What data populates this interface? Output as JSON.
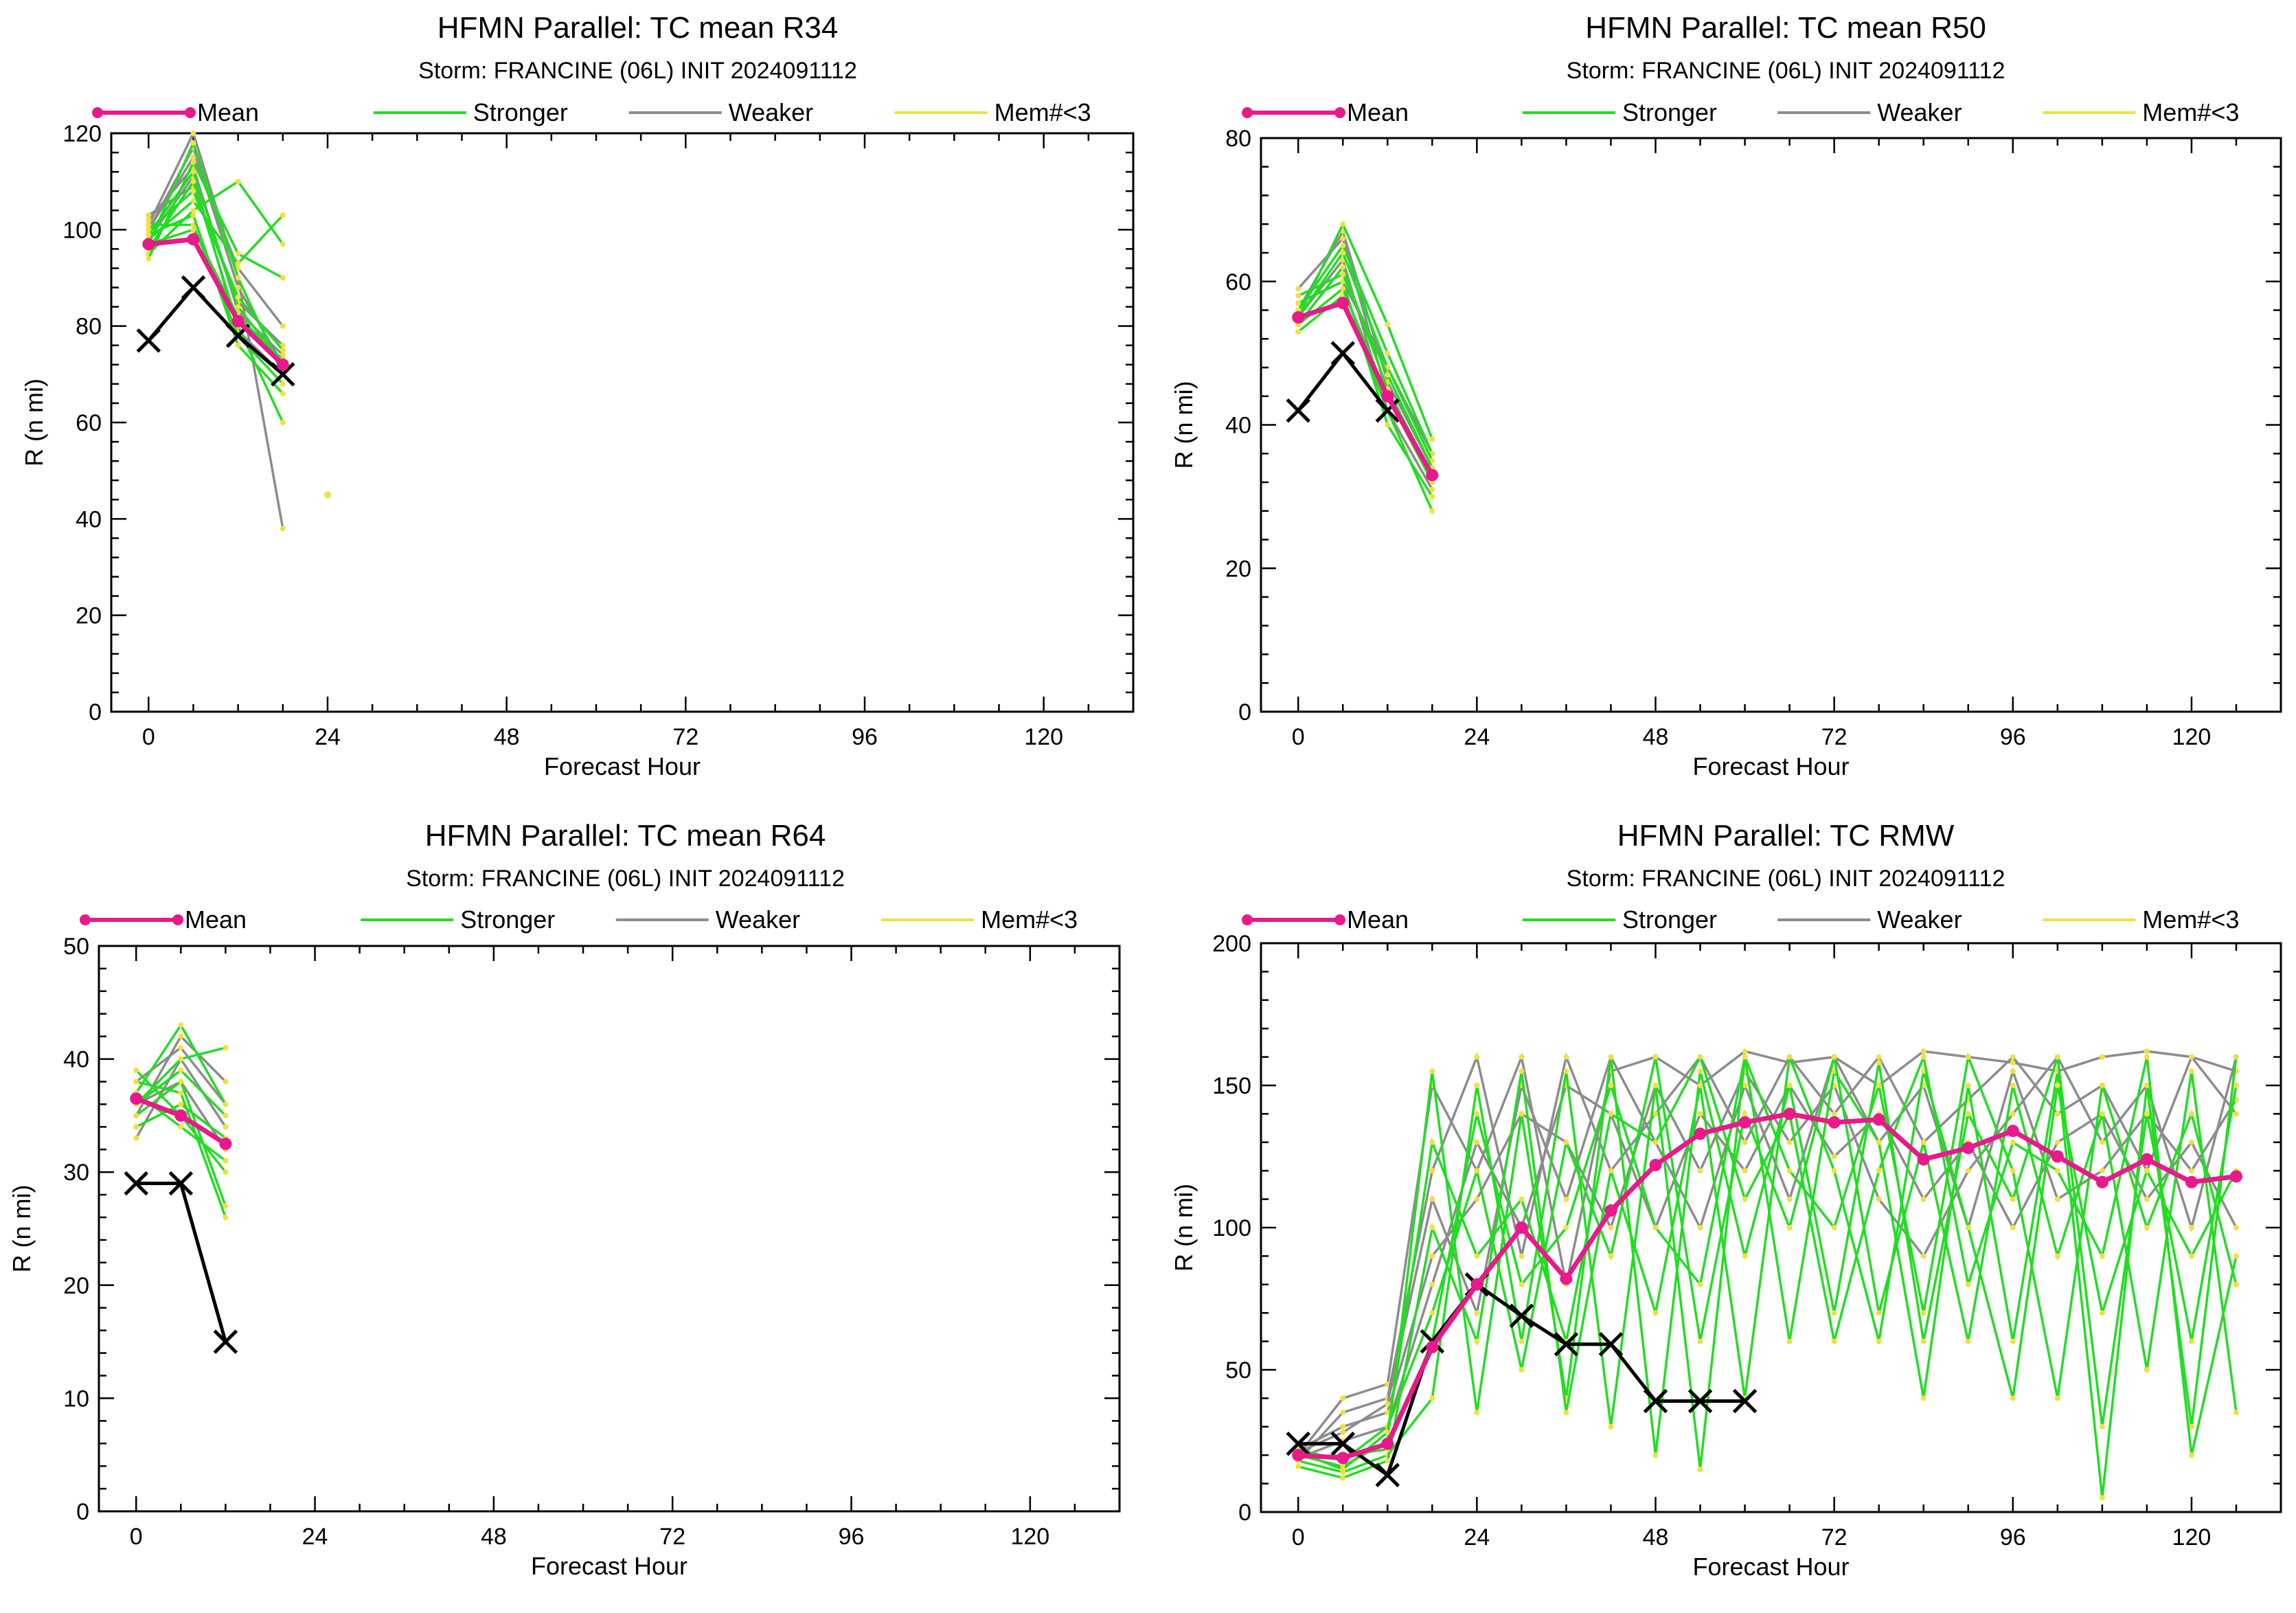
{
  "figure": {
    "panels": [
      {
        "title": "HFMN Parallel: TC mean R34",
        "subtitle": "Storm: FRANCINE (06L) INIT 2024091112",
        "legend": [
          "Mean",
          "Stronger",
          "Weaker",
          "Mem#<3"
        ],
        "xlabel": "Forecast Hour",
        "ylabel": "R (n mi)",
        "xticks": [
          "0",
          "24",
          "48",
          "72",
          "96",
          "120"
        ],
        "yticks": [
          "0",
          "20",
          "40",
          "60",
          "80",
          "100",
          "120"
        ]
      },
      {
        "title": "HFMN Parallel: TC mean R50",
        "subtitle": "Storm: FRANCINE (06L) INIT 2024091112",
        "legend": [
          "Mean",
          "Stronger",
          "Weaker",
          "Mem#<3"
        ],
        "xlabel": "Forecast Hour",
        "ylabel": "R (n mi)",
        "xticks": [
          "0",
          "24",
          "48",
          "72",
          "96",
          "120"
        ],
        "yticks": [
          "0",
          "20",
          "40",
          "60",
          "80"
        ]
      },
      {
        "title": "HFMN Parallel: TC mean R64",
        "subtitle": "Storm: FRANCINE (06L) INIT 2024091112",
        "legend": [
          "Mean",
          "Stronger",
          "Weaker",
          "Mem#<3"
        ],
        "xlabel": "Forecast Hour",
        "ylabel": "R (n mi)",
        "xticks": [
          "0",
          "24",
          "48",
          "72",
          "96",
          "120"
        ],
        "yticks": [
          "0",
          "10",
          "20",
          "30",
          "40",
          "50"
        ]
      },
      {
        "title": "HFMN Parallel: TC RMW",
        "subtitle": "Storm: FRANCINE (06L) INIT 2024091112",
        "legend": [
          "Mean",
          "Stronger",
          "Weaker",
          "Mem#<3"
        ],
        "xlabel": "Forecast Hour",
        "ylabel": "R (n mi)",
        "xticks": [
          "0",
          "24",
          "48",
          "72",
          "96",
          "120"
        ],
        "yticks": [
          "0",
          "50",
          "100",
          "150",
          "200"
        ]
      }
    ]
  },
  "colors": {
    "mean": "#e8198b",
    "stronger": "#22dd22",
    "weaker": "#8c8c8c",
    "mem_lt3": "#f0e040",
    "best_track": "#000000"
  },
  "chart_data": [
    {
      "type": "line",
      "title": "HFMN Parallel: TC mean R34",
      "subtitle": "Storm: FRANCINE (06L) INIT 2024091112",
      "xlabel": "Forecast Hour",
      "ylabel": "R (n mi)",
      "xlim": [
        -5,
        132
      ],
      "ylim": [
        0,
        120
      ],
      "xtick_values": [
        0,
        24,
        48,
        72,
        96,
        120
      ],
      "ytick_values": [
        0,
        20,
        40,
        60,
        80,
        100,
        120
      ],
      "series": [
        {
          "name": "Mean",
          "x": [
            0,
            6,
            12,
            18
          ],
          "y": [
            97,
            98,
            81,
            72
          ]
        },
        {
          "name": "Mem#<3",
          "x": [
            24
          ],
          "y": [
            45
          ]
        }
      ],
      "best_track": {
        "x": [
          0,
          6,
          12,
          18
        ],
        "y": [
          77,
          88,
          78,
          70
        ]
      },
      "stronger_members": [
        [
          97,
          118,
          90,
          70
        ],
        [
          99,
          112,
          84,
          72
        ],
        [
          96,
          110,
          80,
          60
        ],
        [
          98,
          106,
          93,
          103
        ],
        [
          95,
          104,
          110,
          97
        ],
        [
          100,
          108,
          86,
          75
        ],
        [
          101,
          101,
          78,
          68
        ],
        [
          97,
          100,
          82,
          73
        ],
        [
          94,
          114,
          95,
          90
        ],
        [
          99,
          103,
          76,
          66
        ]
      ],
      "weaker_members": [
        [
          101,
          120,
          90,
          38
        ],
        [
          100,
          117,
          88,
          72
        ],
        [
          102,
          113,
          83,
          74
        ],
        [
          98,
          111,
          79,
          70
        ],
        [
          103,
          109,
          85,
          76
        ],
        [
          100,
          115,
          92,
          80
        ]
      ]
    },
    {
      "type": "line",
      "title": "HFMN Parallel: TC mean R50",
      "subtitle": "Storm: FRANCINE (06L) INIT 2024091112",
      "xlabel": "Forecast Hour",
      "ylabel": "R (n mi)",
      "xlim": [
        -5,
        132
      ],
      "ylim": [
        0,
        80
      ],
      "xtick_values": [
        0,
        24,
        48,
        72,
        96,
        120
      ],
      "ytick_values": [
        0,
        20,
        40,
        60,
        80
      ],
      "series": [
        {
          "name": "Mean",
          "x": [
            0,
            6,
            12,
            18
          ],
          "y": [
            55,
            57,
            44,
            33
          ]
        }
      ],
      "best_track": {
        "x": [
          0,
          6,
          12
        ],
        "y": [
          42,
          50,
          42
        ]
      },
      "stronger_members": [
        [
          55,
          68,
          54,
          38
        ],
        [
          56,
          65,
          50,
          36
        ],
        [
          54,
          62,
          45,
          33
        ],
        [
          57,
          60,
          40,
          30
        ],
        [
          53,
          58,
          42,
          28
        ],
        [
          55,
          64,
          48,
          35
        ],
        [
          58,
          61,
          47,
          34
        ],
        [
          54,
          59,
          44,
          32
        ]
      ],
      "weaker_members": [
        [
          56,
          67,
          46,
          34
        ],
        [
          59,
          66,
          44,
          33
        ],
        [
          55,
          63,
          42,
          31
        ],
        [
          57,
          60,
          48,
          36
        ]
      ]
    },
    {
      "type": "line",
      "title": "HFMN Parallel: TC mean R64",
      "subtitle": "Storm: FRANCINE (06L) INIT 2024091112",
      "xlabel": "Forecast Hour",
      "ylabel": "R (n mi)",
      "xlim": [
        -5,
        132
      ],
      "ylim": [
        0,
        50
      ],
      "xtick_values": [
        0,
        24,
        48,
        72,
        96,
        120
      ],
      "ytick_values": [
        0,
        10,
        20,
        30,
        40,
        50
      ],
      "series": [
        {
          "name": "Mean",
          "x": [
            0,
            6,
            12
          ],
          "y": [
            36.5,
            35,
            32.5
          ]
        }
      ],
      "best_track": {
        "x": [
          0,
          6,
          12
        ],
        "y": [
          29,
          29,
          15
        ]
      },
      "stronger_members": [
        [
          37,
          43,
          36
        ],
        [
          36,
          40,
          41
        ],
        [
          35,
          38,
          27
        ],
        [
          38,
          37,
          26
        ],
        [
          34,
          36,
          33
        ],
        [
          37,
          34,
          31
        ],
        [
          36,
          39,
          35
        ],
        [
          39,
          35,
          30
        ]
      ],
      "weaker_members": [
        [
          35,
          42,
          38
        ],
        [
          33,
          40,
          34
        ],
        [
          36,
          38,
          32
        ],
        [
          38,
          41,
          36
        ]
      ]
    },
    {
      "type": "line",
      "title": "HFMN Parallel: TC RMW",
      "subtitle": "Storm: FRANCINE (06L) INIT 2024091112",
      "xlabel": "Forecast Hour",
      "ylabel": "R (n mi)",
      "xlim": [
        -5,
        132
      ],
      "ylim": [
        0,
        200
      ],
      "xtick_values": [
        0,
        24,
        48,
        72,
        96,
        120
      ],
      "ytick_values": [
        0,
        50,
        100,
        150,
        200
      ],
      "series": [
        {
          "name": "Mean",
          "x": [
            0,
            6,
            12,
            18,
            24,
            30,
            36,
            42,
            48,
            54,
            60,
            66,
            72,
            78,
            84,
            90,
            96,
            102,
            108,
            114,
            120,
            126
          ],
          "y": [
            20,
            19,
            24,
            58,
            80,
            100,
            82,
            106,
            122,
            133,
            137,
            140,
            137,
            138,
            124,
            128,
            134,
            125,
            116,
            124,
            116,
            118
          ]
        }
      ],
      "best_track": {
        "x": [
          0,
          6,
          12,
          18,
          24,
          30,
          36,
          42,
          48,
          54,
          60
        ],
        "y": [
          24,
          24,
          13,
          60,
          80,
          69,
          59,
          59,
          39,
          39,
          39
        ]
      },
      "stronger_members": [
        [
          18,
          14,
          20,
          40,
          150,
          60,
          155,
          30,
          150,
          15,
          160,
          60,
          155,
          130,
          40,
          150,
          60,
          155,
          5,
          150,
          30,
          160
        ],
        [
          20,
          16,
          25,
          155,
          35,
          140,
          40,
          160,
          20,
          155,
          90,
          150,
          70,
          158,
          60,
          140,
          110,
          160,
          30,
          140,
          60,
          150
        ],
        [
          22,
          18,
          30,
          70,
          120,
          50,
          130,
          90,
          160,
          60,
          140,
          100,
          160,
          70,
          130,
          60,
          150,
          90,
          140,
          50,
          155,
          35
        ],
        [
          16,
          12,
          18,
          100,
          60,
          155,
          35,
          120,
          70,
          150,
          40,
          160,
          120,
          60,
          155,
          100,
          40,
          150,
          70,
          120,
          90,
          120
        ],
        [
          19,
          20,
          22,
          60,
          140,
          80,
          100,
          150,
          100,
          80,
          160,
          120,
          100,
          150,
          70,
          160,
          120,
          40,
          150,
          100,
          140,
          80
        ],
        [
          21,
          15,
          28,
          130,
          90,
          110,
          60,
          140,
          130,
          160,
          110,
          140,
          60,
          120,
          160,
          80,
          130,
          120,
          90,
          160,
          20,
          90
        ]
      ],
      "weaker_members": [
        [
          20,
          40,
          45,
          150,
          120,
          160,
          80,
          155,
          160,
          150,
          162,
          158,
          160,
          150,
          162,
          160,
          158,
          155,
          160,
          162,
          160,
          155
        ],
        [
          18,
          35,
          40,
          120,
          160,
          90,
          160,
          120,
          140,
          160,
          130,
          160,
          140,
          160,
          130,
          145,
          160,
          140,
          150,
          120,
          160,
          140
        ],
        [
          22,
          30,
          35,
          90,
          110,
          140,
          130,
          100,
          150,
          120,
          155,
          130,
          150,
          110,
          90,
          120,
          140,
          160,
          130,
          150,
          100,
          160
        ],
        [
          19,
          25,
          30,
          80,
          130,
          100,
          150,
          140,
          100,
          140,
          120,
          150,
          125,
          140,
          110,
          130,
          100,
          130,
          140,
          110,
          130,
          100
        ],
        [
          21,
          28,
          38,
          110,
          70,
          150,
          110,
          160,
          130,
          100,
          150,
          110,
          160,
          130,
          150,
          100,
          155,
          110,
          120,
          140,
          120,
          145
        ]
      ]
    }
  ]
}
